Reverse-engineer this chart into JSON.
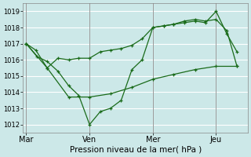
{
  "background_color": "#cce8e8",
  "grid_color": "#ffffff",
  "line_color": "#1a6b1a",
  "xlabel": "Pression niveau de la mer( hPa )",
  "ylim": [
    1011.5,
    1019.5
  ],
  "yticks": [
    1012,
    1013,
    1014,
    1015,
    1016,
    1017,
    1018,
    1019
  ],
  "xtick_labels": [
    "Mar",
    "Ven",
    "Mer",
    "Jeu"
  ],
  "xtick_positions": [
    0.0,
    1.0,
    2.0,
    3.0
  ],
  "xlim": [
    -0.05,
    3.5
  ],
  "vline_positions": [
    0.0,
    1.0,
    2.0,
    3.0
  ],
  "series1": {
    "x": [
      0.0,
      0.15,
      0.33,
      0.5,
      0.67,
      0.83,
      1.0,
      1.17,
      1.33,
      1.5,
      1.67,
      1.83,
      2.0,
      2.17,
      2.33,
      2.5,
      2.67,
      2.83,
      3.0,
      3.17,
      3.33
    ],
    "y": [
      1017.0,
      1016.6,
      1015.5,
      1016.1,
      1016.0,
      1016.1,
      1016.1,
      1016.5,
      1016.6,
      1016.7,
      1016.9,
      1017.3,
      1018.0,
      1018.1,
      1018.2,
      1018.4,
      1018.5,
      1018.4,
      1018.5,
      1017.8,
      1015.6
    ]
  },
  "series2": {
    "x": [
      0.0,
      0.17,
      0.33,
      0.5,
      0.67,
      0.83,
      1.0,
      1.17,
      1.33,
      1.5,
      1.67,
      1.83,
      2.0,
      2.17,
      2.33,
      2.5,
      2.67,
      2.83,
      3.0,
      3.17,
      3.33
    ],
    "y": [
      1017.0,
      1016.2,
      1015.9,
      1015.3,
      1014.4,
      1013.8,
      1012.0,
      1012.8,
      1013.0,
      1013.5,
      1015.4,
      1016.0,
      1018.0,
      1018.1,
      1018.2,
      1018.3,
      1018.4,
      1018.3,
      1019.0,
      1017.6,
      1016.5
    ]
  },
  "series3": {
    "x": [
      0.0,
      0.33,
      0.67,
      1.0,
      1.33,
      1.67,
      2.0,
      2.33,
      2.67,
      3.0,
      3.33
    ],
    "y": [
      1017.0,
      1015.5,
      1013.7,
      1013.7,
      1013.9,
      1014.3,
      1014.8,
      1015.1,
      1015.4,
      1015.6,
      1015.6
    ]
  }
}
